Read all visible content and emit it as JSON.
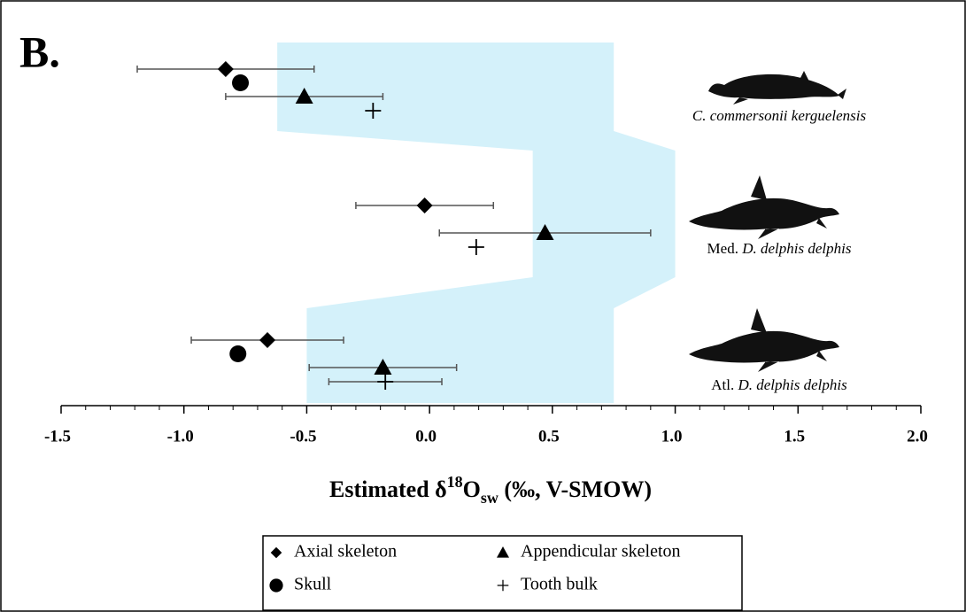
{
  "chart_data": {
    "type": "dot-errorbar",
    "panel_label": "B.",
    "x_label": {
      "prefix": "Estimated δ",
      "sup": "18",
      "base": "O",
      "sub": "sw",
      "suffix": " (‰, V-SMOW)"
    },
    "groups": [
      {
        "prefix": "",
        "species": "C. commersonii kerguelensis"
      },
      {
        "prefix": "Med.",
        "species": "D. delphis delphis"
      },
      {
        "prefix": "Atl.",
        "species": "D. delphis delphis"
      }
    ],
    "shaded_ranges": [
      [
        -0.62,
        0.75
      ],
      [
        0.42,
        1.0
      ],
      [
        -0.5,
        0.75
      ]
    ],
    "shaded_color": "#d4f1fa",
    "series": [
      {
        "name": "Axial skeleton",
        "marker": "diamond",
        "color": "#000000",
        "values": [
          -0.83,
          -0.02,
          -0.66
        ],
        "errors": [
          0.36,
          0.28,
          0.31
        ]
      },
      {
        "name": "Skull",
        "marker": "circle",
        "color": "#000000",
        "values": [
          -0.77,
          null,
          -0.78
        ],
        "errors": [
          null,
          null,
          null
        ]
      },
      {
        "name": "Appendicular skeleton",
        "marker": "triangle",
        "color": "#000000",
        "values": [
          -0.51,
          0.47,
          -0.19
        ],
        "errors": [
          0.32,
          0.43,
          0.3
        ]
      },
      {
        "name": "Tooth bulk",
        "marker": "plus",
        "color": "#000000",
        "values": [
          -0.23,
          0.19,
          -0.18
        ],
        "errors": [
          null,
          null,
          0.23
        ]
      }
    ],
    "xlim": [
      -1.5,
      2.0
    ],
    "xticks": [
      -1.5,
      {
        "value": -1,
        "label": "-1.0"
      },
      -0.5,
      {
        "value": 0,
        "label": "0.0"
      },
      0.5,
      {
        "value": 1,
        "label": "1.0"
      },
      1.5,
      {
        "value": 2,
        "label": "2.0"
      }
    ],
    "xminorticks": [
      -1.4,
      -1.3,
      -1.2,
      -1.1,
      -0.9,
      -0.8,
      -0.7,
      -0.6,
      -0.4,
      -0.3,
      -0.2,
      -0.1,
      0.1,
      0.2,
      0.3,
      0.4,
      0.6,
      0.7,
      0.8,
      0.9,
      1.1,
      1.2,
      1.3,
      1.4,
      1.6,
      1.7,
      1.8,
      1.9
    ]
  }
}
